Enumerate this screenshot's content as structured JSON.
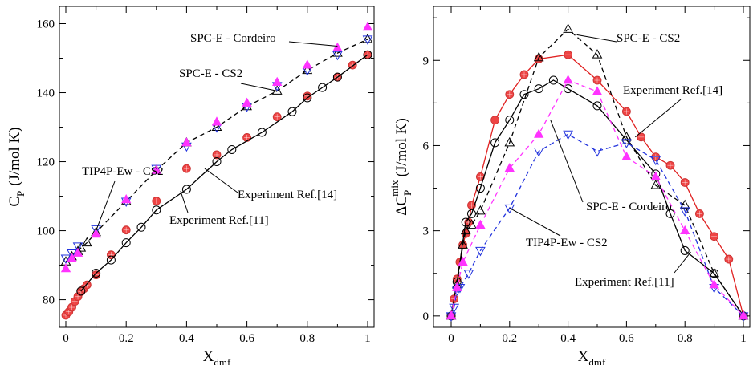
{
  "chart_data": [
    {
      "type": "scatter",
      "ylabel": "C",
      "ylabel_sub": "P",
      "ylabel_unit": "(J/mol K)",
      "xlabel": "X",
      "xlabel_sub": "dmf",
      "xlim": [
        0,
        1
      ],
      "ylim": [
        72,
        165
      ],
      "xticks": [
        0,
        0.2,
        0.4,
        0.6,
        0.8,
        1
      ],
      "xtick_labels": [
        "0",
        "0.2",
        "0.4",
        "0.6",
        "0.8",
        "1"
      ],
      "yticks": [
        80,
        100,
        120,
        140,
        160
      ],
      "ytick_labels": [
        "80",
        "100",
        "120",
        "140",
        "160"
      ],
      "grid": false,
      "series": [
        {
          "marker": "circle-filled",
          "color": "#ee4444",
          "line": "none",
          "x": [
            0.0,
            0.01,
            0.02,
            0.03,
            0.04,
            0.05,
            0.06,
            0.07,
            0.1,
            0.15,
            0.2,
            0.3,
            0.4,
            0.5,
            0.6,
            0.7,
            0.8,
            0.9,
            0.95,
            1.0
          ],
          "y": [
            75.5,
            76.5,
            77.8,
            79.5,
            80.9,
            82.3,
            83.2,
            84.3,
            87.2,
            93.0,
            100.2,
            108.6,
            118.0,
            122.0,
            127.0,
            133.0,
            139.0,
            144.5,
            148.0,
            151.0
          ]
        },
        {
          "marker": "circle-open",
          "color": "#000000",
          "line": "solid",
          "x": [
            0.05,
            0.1,
            0.15,
            0.2,
            0.25,
            0.3,
            0.4,
            0.5,
            0.55,
            0.65,
            0.75,
            0.8,
            0.85,
            0.9,
            1.0
          ],
          "y": [
            82.5,
            87.7,
            91.5,
            96.5,
            101.0,
            106.0,
            112.0,
            120.0,
            123.5,
            128.5,
            134.5,
            138.5,
            141.5,
            144.5,
            151.0
          ]
        },
        {
          "marker": "triangle-open",
          "color": "#000000",
          "line": "dashed",
          "x": [
            0.0,
            0.02,
            0.04,
            0.05,
            0.07,
            0.1,
            0.2,
            0.3,
            0.4,
            0.5,
            0.6,
            0.7,
            0.8,
            0.9,
            1.0
          ],
          "y": [
            91,
            92.5,
            94,
            95,
            96.5,
            99.5,
            108.5,
            117.5,
            125.5,
            130.0,
            136.0,
            140.5,
            146.5,
            151.5,
            155.5
          ]
        },
        {
          "marker": "triangle-down-open",
          "color": "#2233dd",
          "line": "none",
          "x": [
            0.0,
            0.02,
            0.04,
            0.1,
            0.2,
            0.3,
            0.4,
            0.5,
            0.6,
            0.7,
            0.8,
            0.9,
            1.0
          ],
          "y": [
            92,
            93.5,
            95.5,
            100.5,
            108.5,
            118.0,
            124.5,
            130.0,
            136.0,
            142.0,
            146.5,
            151.0,
            155.5
          ]
        },
        {
          "marker": "triangle-filled",
          "color": "#ff33ff",
          "line": "none",
          "x": [
            0.0,
            0.02,
            0.04,
            0.1,
            0.2,
            0.3,
            0.4,
            0.5,
            0.6,
            0.7,
            0.8,
            0.9,
            1.0
          ],
          "y": [
            89,
            92,
            93.5,
            99,
            109,
            117.5,
            125.5,
            131.5,
            137,
            143,
            148,
            153,
            159
          ]
        }
      ],
      "annotations": [
        {
          "text": "SPC-E - Cordeiro",
          "target": [
            0.9,
            153.5
          ]
        },
        {
          "text": "SPC-E - CS2",
          "target": [
            0.7,
            140.5
          ]
        },
        {
          "text": "TIP4P-Ew - CS2",
          "target": [
            0.1,
            100
          ]
        },
        {
          "text": "Experiment Ref.[14]",
          "target": [
            0.46,
            118
          ]
        },
        {
          "text": "Experiment Ref.[11]",
          "target": [
            0.38,
            111.5
          ]
        }
      ]
    },
    {
      "type": "scatter",
      "ylabel": "ΔC",
      "ylabel_sub": "P",
      "ylabel_sup": "mix",
      "ylabel_unit": "(J/mol K)",
      "xlabel": "X",
      "xlabel_sub": "dmf",
      "xlim": [
        0,
        1
      ],
      "ylim": [
        -0.4,
        10.9
      ],
      "xticks": [
        0,
        0.2,
        0.4,
        0.6,
        0.8,
        1
      ],
      "xtick_labels": [
        "0",
        "0.2",
        "0.4",
        "0.6",
        "0.8",
        "1"
      ],
      "yticks": [
        0,
        3,
        6,
        9
      ],
      "ytick_labels": [
        "0",
        "3",
        "6",
        "9"
      ],
      "grid": false,
      "series": [
        {
          "marker": "circle-filled",
          "color": "#ee4444",
          "line": "solid",
          "x": [
            0.0,
            0.01,
            0.02,
            0.03,
            0.04,
            0.05,
            0.06,
            0.07,
            0.1,
            0.15,
            0.2,
            0.25,
            0.3,
            0.4,
            0.5,
            0.6,
            0.65,
            0.7,
            0.75,
            0.8,
            0.85,
            0.9,
            0.95,
            1.0
          ],
          "y": [
            0.0,
            0.6,
            1.3,
            1.9,
            2.5,
            2.9,
            3.3,
            3.9,
            4.9,
            6.9,
            7.8,
            8.5,
            9.05,
            9.2,
            8.3,
            7.2,
            6.3,
            5.6,
            5.3,
            4.7,
            3.6,
            2.8,
            2.0,
            0.0
          ]
        },
        {
          "marker": "circle-open",
          "color": "#000000",
          "line": "solid",
          "x": [
            0.0,
            0.02,
            0.05,
            0.07,
            0.1,
            0.15,
            0.2,
            0.25,
            0.3,
            0.35,
            0.4,
            0.5,
            0.6,
            0.7,
            0.75,
            0.8,
            0.9,
            1.0
          ],
          "y": [
            0.0,
            1.2,
            3.3,
            3.6,
            4.5,
            6.1,
            6.9,
            7.8,
            8.0,
            8.3,
            8.0,
            7.4,
            6.2,
            5.0,
            3.6,
            2.3,
            1.5,
            0.0
          ]
        },
        {
          "marker": "triangle-open",
          "color": "#000000",
          "line": "dashed",
          "x": [
            0.0,
            0.02,
            0.04,
            0.05,
            0.07,
            0.1,
            0.2,
            0.3,
            0.4,
            0.5,
            0.6,
            0.7,
            0.8,
            0.9,
            1.0
          ],
          "y": [
            0.0,
            1.1,
            2.5,
            3.0,
            3.2,
            3.7,
            6.1,
            9.1,
            10.1,
            9.2,
            6.3,
            4.6,
            3.9,
            1.5,
            0.0
          ]
        },
        {
          "marker": "triangle-down-open",
          "color": "#2233dd",
          "line": "dashed",
          "x": [
            0.0,
            0.01,
            0.02,
            0.03,
            0.06,
            0.1,
            0.2,
            0.3,
            0.4,
            0.5,
            0.6,
            0.7,
            0.8,
            0.9,
            1.0
          ],
          "y": [
            0.0,
            0.3,
            0.9,
            1.0,
            1.5,
            2.3,
            3.8,
            5.8,
            6.4,
            5.8,
            6.1,
            5.5,
            3.7,
            1.0,
            0.0
          ]
        },
        {
          "marker": "triangle-filled",
          "color": "#ff33ff",
          "line": "dashed",
          "x": [
            0.0,
            0.02,
            0.04,
            0.1,
            0.2,
            0.3,
            0.4,
            0.5,
            0.6,
            0.7,
            0.8,
            0.9,
            1.0
          ],
          "y": [
            0.0,
            1.0,
            1.9,
            3.2,
            5.2,
            6.4,
            8.3,
            7.9,
            5.6,
            4.9,
            3.0,
            1.1,
            0.0
          ]
        }
      ],
      "annotations": [
        {
          "text": "SPC-E - CS2",
          "target": [
            0.43,
            9.9
          ]
        },
        {
          "text": "Experiment Ref.[14]",
          "target": [
            0.63,
            6.3
          ]
        },
        {
          "text": "SPC-E - Cordeiro",
          "target": [
            0.34,
            6.9
          ]
        },
        {
          "text": "TIP4P-Ew - CS2",
          "target": [
            0.2,
            3.8
          ]
        },
        {
          "text": "Experiment Ref.[11]",
          "target": [
            0.82,
            2.25
          ]
        }
      ]
    }
  ]
}
